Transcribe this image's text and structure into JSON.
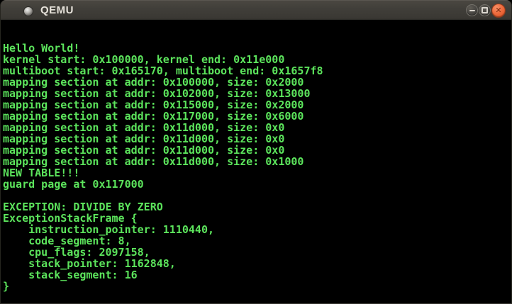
{
  "window": {
    "title": "QEMU",
    "controls": {
      "minimize_label": "minimize",
      "maximize_label": "maximize",
      "close_label": "close",
      "close_glyph": "✕"
    },
    "theme": {
      "titlebar_color": "#403e39",
      "title_text_color": "#e6e2da",
      "close_button_color": "#ee6a3c"
    }
  },
  "console": {
    "background": "#000000",
    "text_color": "#5ce45c",
    "columns": 80,
    "rows": 25,
    "lines": [
      "",
      "",
      "Hello World!",
      "kernel start: 0x100000, kernel end: 0x11e000",
      "multiboot start: 0x165170, multiboot end: 0x1657f8",
      "mapping section at addr: 0x100000, size: 0x2000",
      "mapping section at addr: 0x102000, size: 0x13000",
      "mapping section at addr: 0x115000, size: 0x2000",
      "mapping section at addr: 0x117000, size: 0x6000",
      "mapping section at addr: 0x11d000, size: 0x0",
      "mapping section at addr: 0x11d000, size: 0x0",
      "mapping section at addr: 0x11d000, size: 0x0",
      "mapping section at addr: 0x11d000, size: 0x1000",
      "NEW TABLE!!!",
      "guard page at 0x117000",
      "",
      "EXCEPTION: DIVIDE BY ZERO",
      "ExceptionStackFrame {",
      "    instruction_pointer: 1110440,",
      "    code_segment: 8,",
      "    cpu_flags: 2097158,",
      "    stack_pointer: 1162848,",
      "    stack_segment: 16",
      "}",
      ""
    ]
  }
}
